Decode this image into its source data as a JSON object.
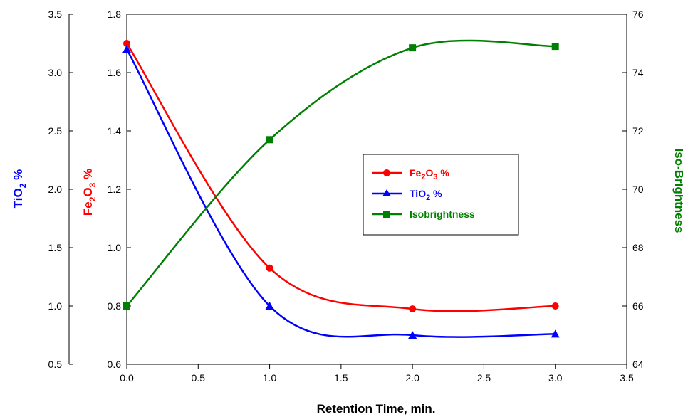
{
  "chart_data": {
    "type": "line",
    "title": "",
    "xlabel": "Retention Time, min.",
    "xlim": [
      0,
      3.5
    ],
    "x_ticks": [
      "0.0",
      "0.5",
      "1.0",
      "1.5",
      "2.0",
      "2.5",
      "3.0",
      "3.5"
    ],
    "grid": false,
    "legend_position": "center-right",
    "axes": {
      "y_fe2o3": {
        "label_main": "Fe",
        "label_sub1": "2",
        "label_mid": "O",
        "label_sub2": "3",
        "label_tail": " %",
        "color": "#ff0000",
        "ylim": [
          0.6,
          1.8
        ],
        "ticks": [
          "0.6",
          "0.8",
          "1.0",
          "1.2",
          "1.4",
          "1.6",
          "1.8"
        ]
      },
      "y_tio2": {
        "label_main": "TiO",
        "label_sub": "2",
        "label_tail": " %",
        "color": "#0000ff",
        "ylim": [
          0.5,
          3.5
        ],
        "ticks": [
          "0.5",
          "1.0",
          "1.5",
          "2.0",
          "2.5",
          "3.0",
          "3.5"
        ]
      },
      "y_brightness": {
        "label": "Iso-Brightness",
        "color": "#008000",
        "ylim": [
          64,
          76
        ],
        "ticks": [
          "64",
          "66",
          "68",
          "70",
          "72",
          "74",
          "76"
        ]
      }
    },
    "series": [
      {
        "name_main": "Fe",
        "name_sub1": "2",
        "name_mid": "O",
        "name_sub2": "3",
        "name_tail": " %",
        "axis": "y_fe2o3",
        "color": "#ff0000",
        "marker": "circle",
        "x": [
          0,
          1,
          2,
          3
        ],
        "y": [
          1.7,
          0.93,
          0.79,
          0.8
        ]
      },
      {
        "name_main": "TiO",
        "name_sub": "2",
        "name_tail": " %",
        "axis": "y_tio2",
        "color": "#0000ff",
        "marker": "triangle",
        "x": [
          0,
          1,
          2,
          3
        ],
        "y": [
          3.2,
          1.0,
          0.75,
          0.76
        ]
      },
      {
        "name": "Isobrightness",
        "axis": "y_brightness",
        "color": "#008000",
        "marker": "square",
        "x": [
          0,
          1,
          2,
          3
        ],
        "y": [
          66.0,
          71.7,
          74.85,
          74.9
        ]
      }
    ]
  }
}
